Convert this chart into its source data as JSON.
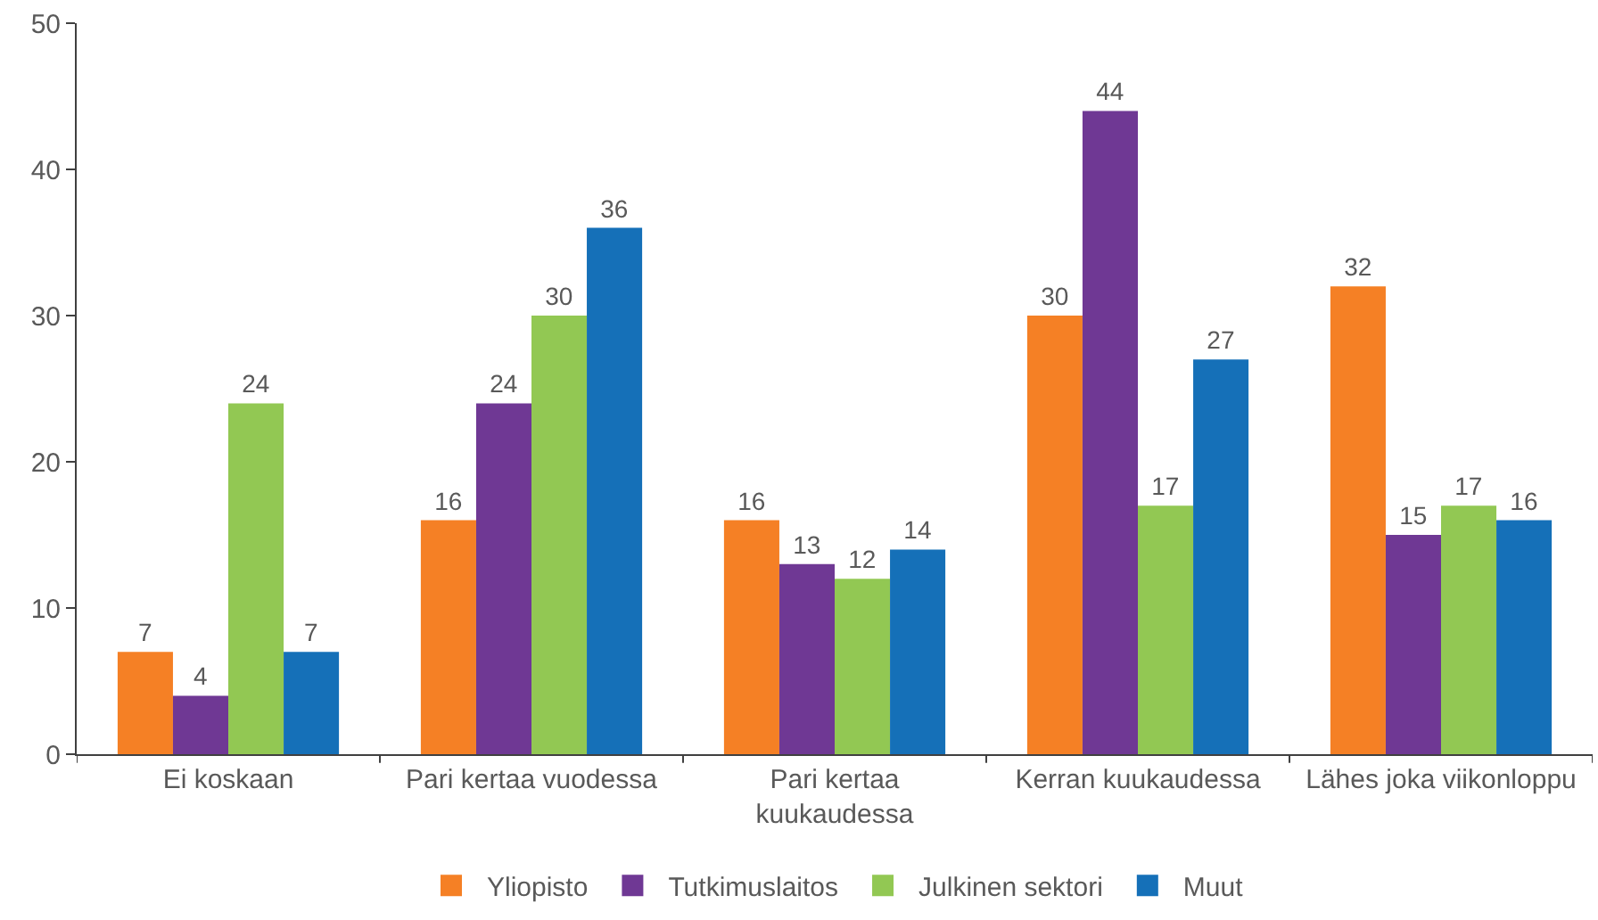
{
  "chart_data": {
    "type": "bar",
    "categories": [
      "Ei koskaan",
      "Pari kertaa vuodessa",
      "Pari kertaa\nkuukaudessa",
      "Kerran kuukaudessa",
      "Lähes joka viikonloppu"
    ],
    "series": [
      {
        "name": "Yliopisto",
        "color": "#f58025",
        "values": [
          7,
          16,
          16,
          30,
          32
        ]
      },
      {
        "name": "Tutkimuslaitos",
        "color": "#6f3894",
        "values": [
          4,
          24,
          13,
          44,
          15
        ]
      },
      {
        "name": "Julkinen sektori",
        "color": "#92c853",
        "values": [
          24,
          30,
          12,
          17,
          17
        ]
      },
      {
        "name": "Muut",
        "color": "#1570b8",
        "values": [
          7,
          36,
          14,
          27,
          16
        ]
      }
    ],
    "ylim": [
      0,
      50
    ],
    "yticks": [
      0,
      10,
      20,
      30,
      40,
      50
    ],
    "grid": false,
    "legend": "bottom",
    "data_labels": true
  }
}
